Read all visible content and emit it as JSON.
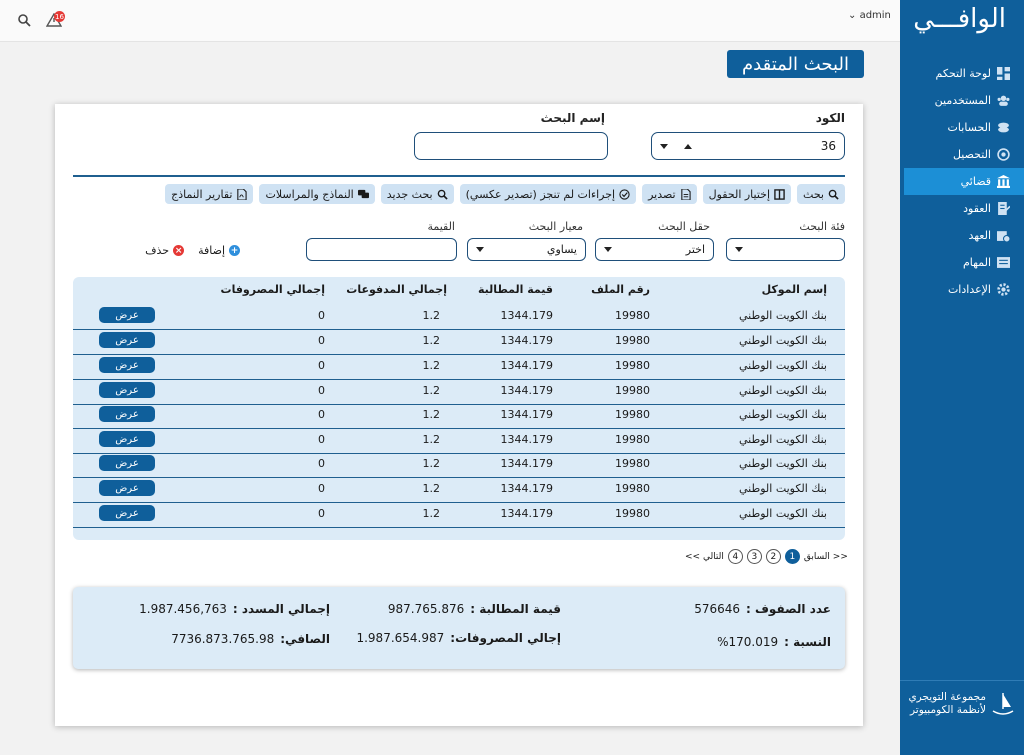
{
  "brand": {
    "title": "الوافـــي"
  },
  "topbar": {
    "user": "admin",
    "alert_count": "16"
  },
  "sidebar": {
    "items": [
      {
        "label": "لوحة التحكم",
        "icon": "dashboard-icon"
      },
      {
        "label": "المستخدمين",
        "icon": "users-icon"
      },
      {
        "label": "الحسابات",
        "icon": "coins-icon"
      },
      {
        "label": "التحصيل",
        "icon": "collection-icon"
      },
      {
        "label": "قضائي",
        "icon": "court-icon",
        "active": true
      },
      {
        "label": "العقود",
        "icon": "contract-icon"
      },
      {
        "label": "العهد",
        "icon": "custody-icon"
      },
      {
        "label": "المهام",
        "icon": "tasks-icon"
      },
      {
        "label": "الإعدادات",
        "icon": "settings-icon"
      }
    ],
    "footer_line1": "مجموعة التويجري",
    "footer_line2": "لأنظمة الكومبيوتر"
  },
  "page": {
    "title": "البحث المتقدم"
  },
  "form": {
    "code_label": "الكود",
    "code_value": "36",
    "search_name_label": "إسم البحث",
    "search_name_value": ""
  },
  "toolbar": {
    "search": "بحث",
    "choose_fields": "إختيار الحقول",
    "export": "تصدير",
    "reverse_export": "إجراءات لم تنجز (تصدير عكسي)",
    "new_search": "بحث جديد",
    "templates": "النماذج والمراسلات",
    "template_reports": "تقارير النماذج"
  },
  "filters": {
    "category_label": "فئة البحث",
    "category_value": "",
    "field_label": "حقل البحث",
    "field_value": "اختر",
    "criteria_label": "معيار البحث",
    "criteria_value": "يساوي",
    "value_label": "القيمة",
    "value_value": "",
    "add": "إضافة",
    "delete": "حذف"
  },
  "table": {
    "headers": [
      "إسم الموكل",
      "رقم الملف",
      "قيمة المطالبة",
      "إجمالي المدفوعات",
      "إجمالي المصروفات"
    ],
    "view_label": "عرض",
    "rows": [
      [
        "بنك الكويت الوطني",
        "19980",
        "1344.179",
        "1.2",
        "0"
      ],
      [
        "بنك الكويت الوطني",
        "19980",
        "1344.179",
        "1.2",
        "0"
      ],
      [
        "بنك الكويت الوطني",
        "19980",
        "1344.179",
        "1.2",
        "0"
      ],
      [
        "بنك الكويت الوطني",
        "19980",
        "1344.179",
        "1.2",
        "0"
      ],
      [
        "بنك الكويت الوطني",
        "19980",
        "1344.179",
        "1.2",
        "0"
      ],
      [
        "بنك الكويت الوطني",
        "19980",
        "1344.179",
        "1.2",
        "0"
      ],
      [
        "بنك الكويت الوطني",
        "19980",
        "1344.179",
        "1.2",
        "0"
      ],
      [
        "بنك الكويت الوطني",
        "19980",
        "1344.179",
        "1.2",
        "0"
      ],
      [
        "بنك الكويت الوطني",
        "19980",
        "1344.179",
        "1.2",
        "0"
      ]
    ]
  },
  "pager": {
    "prev": "<< السابق",
    "next": "التالي >>",
    "pages": [
      "1",
      "2",
      "3",
      "4"
    ],
    "current": "1"
  },
  "summary": {
    "rows_count_label": "عدد الصفوف :",
    "rows_count": "576646",
    "claim_label": "قيمة المطالبة :",
    "claim_value": "987.765.876",
    "paid_label": "إجمالي المسدد :",
    "paid_value": "1.987.456,763",
    "ratio_label": "النسبة :",
    "ratio_value": "%170.019",
    "expenses_label": "إجالي المصروفات:",
    "expenses_value": "1.987.654.987",
    "net_label": "الصافي:",
    "net_value": "7736.873.765.98"
  }
}
